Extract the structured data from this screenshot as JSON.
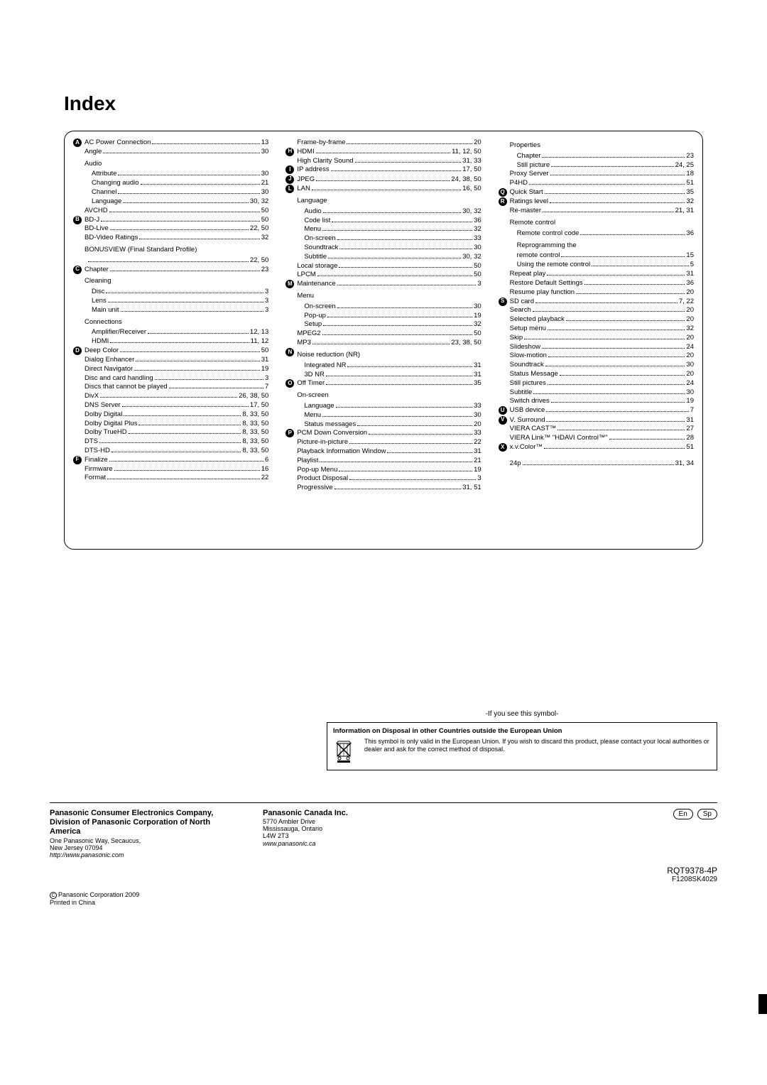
{
  "title": "Index",
  "columns": {
    "col1": [
      {
        "type": "row",
        "letter": "A",
        "label": "AC Power Connection",
        "page": "13"
      },
      {
        "type": "row",
        "letter": "",
        "label": "Angle",
        "page": "30"
      },
      {
        "type": "header",
        "letter": "",
        "label": "Audio"
      },
      {
        "type": "row",
        "letter": "",
        "label": "Attribute",
        "page": "30",
        "sub": 1
      },
      {
        "type": "row",
        "letter": "",
        "label": "Changing audio",
        "page": "21",
        "sub": 1
      },
      {
        "type": "row",
        "letter": "",
        "label": "Channel",
        "page": "30",
        "sub": 1
      },
      {
        "type": "row",
        "letter": "",
        "label": "Language",
        "page": "30, 32",
        "sub": 1
      },
      {
        "type": "row",
        "letter": "",
        "label": "AVCHD",
        "page": "50"
      },
      {
        "type": "row",
        "letter": "B",
        "label": "BD-J",
        "page": "50"
      },
      {
        "type": "row",
        "letter": "",
        "label": "BD-Live",
        "page": "22, 50"
      },
      {
        "type": "row",
        "letter": "",
        "label": "BD-Video Ratings",
        "page": "32"
      },
      {
        "type": "row",
        "letter": "",
        "label": "BONUSVIEW (Final Standard Profile)",
        "page": "22, 50",
        "wrap": true
      },
      {
        "type": "row",
        "letter": "C",
        "label": "Chapter",
        "page": "23"
      },
      {
        "type": "header",
        "letter": "",
        "label": "Cleaning"
      },
      {
        "type": "row",
        "letter": "",
        "label": "Disc",
        "page": "3",
        "sub": 1
      },
      {
        "type": "row",
        "letter": "",
        "label": "Lens",
        "page": "3",
        "sub": 1
      },
      {
        "type": "row",
        "letter": "",
        "label": "Main unit",
        "page": "3",
        "sub": 1
      },
      {
        "type": "header",
        "letter": "",
        "label": "Connections"
      },
      {
        "type": "row",
        "letter": "",
        "label": "Amplifier/Receiver",
        "page": "12, 13",
        "sub": 1
      },
      {
        "type": "row",
        "letter": "",
        "label": "HDMI",
        "page": "11, 12",
        "sub": 1
      },
      {
        "type": "row",
        "letter": "D",
        "label": "Deep Color",
        "page": "50"
      },
      {
        "type": "row",
        "letter": "",
        "label": "Dialog Enhancer",
        "page": "31"
      },
      {
        "type": "row",
        "letter": "",
        "label": "Direct Navigator",
        "page": "19"
      },
      {
        "type": "row",
        "letter": "",
        "label": "Disc and card handling",
        "page": "3"
      },
      {
        "type": "row",
        "letter": "",
        "label": "Discs that cannot be played",
        "page": "7"
      },
      {
        "type": "row",
        "letter": "",
        "label": "DivX",
        "page": "26, 38, 50"
      },
      {
        "type": "row",
        "letter": "",
        "label": "DNS Server",
        "page": "17, 50"
      },
      {
        "type": "row",
        "letter": "",
        "label": "Dolby Digital",
        "page": "8, 33, 50"
      },
      {
        "type": "row",
        "letter": "",
        "label": "Dolby Digital Plus",
        "page": "8, 33, 50"
      },
      {
        "type": "row",
        "letter": "",
        "label": "Dolby TrueHD",
        "page": "8, 33, 50"
      },
      {
        "type": "row",
        "letter": "",
        "label": "DTS",
        "page": "8, 33, 50"
      },
      {
        "type": "row",
        "letter": "",
        "label": "DTS-HD",
        "page": "8, 33, 50"
      },
      {
        "type": "row",
        "letter": "F",
        "label": "Finalize",
        "page": "6"
      },
      {
        "type": "row",
        "letter": "",
        "label": "Firmware",
        "page": "16"
      },
      {
        "type": "row",
        "letter": "",
        "label": "Format",
        "page": "22"
      }
    ],
    "col2": [
      {
        "type": "row",
        "letter": "",
        "label": "Frame-by-frame",
        "page": "20"
      },
      {
        "type": "row",
        "letter": "H",
        "label": "HDMI",
        "page": "11, 12, 50"
      },
      {
        "type": "row",
        "letter": "",
        "label": "High Clarity Sound",
        "page": "31, 33"
      },
      {
        "type": "row",
        "letter": "I",
        "label": "IP address",
        "page": "17, 50"
      },
      {
        "type": "row",
        "letter": "J",
        "label": "JPEG",
        "page": "24, 38, 50"
      },
      {
        "type": "row",
        "letter": "L",
        "label": "LAN",
        "page": "16, 50"
      },
      {
        "type": "header",
        "letter": "",
        "label": "Language"
      },
      {
        "type": "row",
        "letter": "",
        "label": "Audio",
        "page": "30, 32",
        "sub": 1
      },
      {
        "type": "row",
        "letter": "",
        "label": "Code list",
        "page": "36",
        "sub": 1
      },
      {
        "type": "row",
        "letter": "",
        "label": "Menu",
        "page": "32",
        "sub": 1
      },
      {
        "type": "row",
        "letter": "",
        "label": "On-screen",
        "page": "33",
        "sub": 1
      },
      {
        "type": "row",
        "letter": "",
        "label": "Soundtrack",
        "page": "30",
        "sub": 1
      },
      {
        "type": "row",
        "letter": "",
        "label": "Subtitle",
        "page": "30, 32",
        "sub": 1
      },
      {
        "type": "row",
        "letter": "",
        "label": "Local storage",
        "page": "50"
      },
      {
        "type": "row",
        "letter": "",
        "label": "LPCM",
        "page": "50"
      },
      {
        "type": "row",
        "letter": "M",
        "label": "Maintenance",
        "page": "3"
      },
      {
        "type": "header",
        "letter": "",
        "label": "Menu"
      },
      {
        "type": "row",
        "letter": "",
        "label": "On-screen",
        "page": "30",
        "sub": 1
      },
      {
        "type": "row",
        "letter": "",
        "label": "Pop-up",
        "page": "19",
        "sub": 1
      },
      {
        "type": "row",
        "letter": "",
        "label": "Setup",
        "page": "32",
        "sub": 1
      },
      {
        "type": "row",
        "letter": "",
        "label": "MPEG2",
        "page": "50"
      },
      {
        "type": "row",
        "letter": "",
        "label": "MP3",
        "page": "23, 38, 50"
      },
      {
        "type": "header",
        "letter": "N",
        "label": "Noise reduction (NR)"
      },
      {
        "type": "row",
        "letter": "",
        "label": "Integrated NR",
        "page": "31",
        "sub": 1
      },
      {
        "type": "row",
        "letter": "",
        "label": "3D NR",
        "page": "31",
        "sub": 1
      },
      {
        "type": "row",
        "letter": "O",
        "label": "Off Timer",
        "page": "35"
      },
      {
        "type": "header",
        "letter": "",
        "label": "On-screen"
      },
      {
        "type": "row",
        "letter": "",
        "label": "Language",
        "page": "33",
        "sub": 1
      },
      {
        "type": "row",
        "letter": "",
        "label": "Menu",
        "page": "30",
        "sub": 1
      },
      {
        "type": "row",
        "letter": "",
        "label": "Status messages",
        "page": "20",
        "sub": 1
      },
      {
        "type": "row",
        "letter": "P",
        "label": "PCM Down Conversion",
        "page": "33"
      },
      {
        "type": "row",
        "letter": "",
        "label": "Picture-in-picture",
        "page": "22"
      },
      {
        "type": "row",
        "letter": "",
        "label": "Playback Information Window",
        "page": "31"
      },
      {
        "type": "row",
        "letter": "",
        "label": "Playlist",
        "page": "21"
      },
      {
        "type": "row",
        "letter": "",
        "label": "Pop-up Menu",
        "page": "19"
      },
      {
        "type": "row",
        "letter": "",
        "label": "Product Disposal",
        "page": "3"
      },
      {
        "type": "row",
        "letter": "",
        "label": "Progressive",
        "page": "31, 51"
      }
    ],
    "col3": [
      {
        "type": "header",
        "letter": "",
        "label": "Properties"
      },
      {
        "type": "row",
        "letter": "",
        "label": "Chapter",
        "page": "23",
        "sub": 1
      },
      {
        "type": "row",
        "letter": "",
        "label": "Still picture",
        "page": "24, 25",
        "sub": 1
      },
      {
        "type": "row",
        "letter": "",
        "label": "Proxy Server",
        "page": "18"
      },
      {
        "type": "row",
        "letter": "",
        "label": "P4HD",
        "page": "51"
      },
      {
        "type": "row",
        "letter": "Q",
        "label": "Quick Start",
        "page": "35"
      },
      {
        "type": "row",
        "letter": "R",
        "label": "Ratings level",
        "page": "32"
      },
      {
        "type": "row",
        "letter": "",
        "label": "Re-master",
        "page": "21, 31"
      },
      {
        "type": "header",
        "letter": "",
        "label": "Remote control"
      },
      {
        "type": "row",
        "letter": "",
        "label": "Remote control code",
        "page": "36",
        "sub": 1
      },
      {
        "type": "header",
        "letter": "",
        "label": "Reprogramming the",
        "sub": 1
      },
      {
        "type": "row",
        "letter": "",
        "label": "remote control",
        "page": "15",
        "sub": 1
      },
      {
        "type": "row",
        "letter": "",
        "label": "Using the remote control",
        "page": "5",
        "sub": 1
      },
      {
        "type": "row",
        "letter": "",
        "label": "Repeat play",
        "page": "31"
      },
      {
        "type": "row",
        "letter": "",
        "label": "Restore Default Settings",
        "page": "36"
      },
      {
        "type": "row",
        "letter": "",
        "label": "Resume play function",
        "page": "20"
      },
      {
        "type": "row",
        "letter": "S",
        "label": "SD card",
        "page": "7, 22"
      },
      {
        "type": "row",
        "letter": "",
        "label": "Search",
        "page": "20"
      },
      {
        "type": "row",
        "letter": "",
        "label": "Selected playback",
        "page": "20"
      },
      {
        "type": "row",
        "letter": "",
        "label": "Setup menu",
        "page": "32"
      },
      {
        "type": "row",
        "letter": "",
        "label": "Skip",
        "page": "20"
      },
      {
        "type": "row",
        "letter": "",
        "label": "Slideshow",
        "page": "24"
      },
      {
        "type": "row",
        "letter": "",
        "label": "Slow-motion",
        "page": "20"
      },
      {
        "type": "row",
        "letter": "",
        "label": "Soundtrack",
        "page": "30"
      },
      {
        "type": "row",
        "letter": "",
        "label": "Status Message",
        "page": "20"
      },
      {
        "type": "row",
        "letter": "",
        "label": "Still pictures",
        "page": "24"
      },
      {
        "type": "row",
        "letter": "",
        "label": "Subtitle",
        "page": "30"
      },
      {
        "type": "row",
        "letter": "",
        "label": "Switch drives",
        "page": "19"
      },
      {
        "type": "row",
        "letter": "U",
        "label": "USB device",
        "page": "7"
      },
      {
        "type": "row",
        "letter": "V",
        "label": "V. Surround",
        "page": "31"
      },
      {
        "type": "row",
        "letter": "",
        "label": "VIERA CAST™",
        "page": "27"
      },
      {
        "type": "row",
        "letter": "",
        "label": "VIERA Link™ \"HDAVI Control™\"",
        "page": "28"
      },
      {
        "type": "row",
        "letter": "X",
        "label": "x.v.Color™",
        "page": "51"
      },
      {
        "type": "spacer"
      },
      {
        "type": "row",
        "letter": "",
        "label": "24p",
        "page": "31, 34"
      }
    ]
  },
  "symbol": {
    "intro": "-If you see this symbol-",
    "box_title": "Information on Disposal in other Countries outside the European Union",
    "text": "This symbol is only valid in the European Union. If you wish to discard this product, please contact your local authorities or dealer and ask for the correct method of disposal."
  },
  "footer": {
    "left_bold": "Panasonic Consumer Electronics Company, Division of Panasonic Corporation of North America",
    "left_addr1": "One Panasonic Way, Secaucus,",
    "left_addr2": "New Jersey 07094",
    "left_url": "http://www.panasonic.com",
    "mid_bold": "Panasonic Canada Inc.",
    "mid_addr1": "5770 Ambler Drive",
    "mid_addr2": "Mississauga, Ontario",
    "mid_addr3": "L4W 2T3",
    "mid_url": "www.panasonic.ca",
    "lang1": "En",
    "lang2": "Sp",
    "part_no": "RQT9378-4P",
    "part_sub": "F1208SK4029",
    "copyright_line1": "Panasonic Corporation 2009",
    "copyright_line2": "Printed in China"
  }
}
